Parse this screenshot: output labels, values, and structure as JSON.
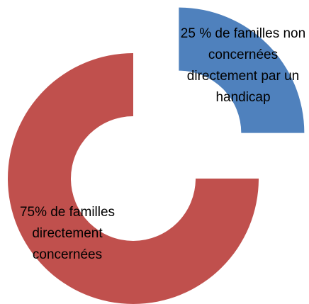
{
  "chart_data": {
    "type": "pie",
    "values": [
      25,
      75
    ],
    "value_labels": [
      "25 % de familles non concernées directement par un handicap",
      "75% de familles directement concernées"
    ],
    "colors": [
      "#4f81bd",
      "#c0504d"
    ]
  }
}
